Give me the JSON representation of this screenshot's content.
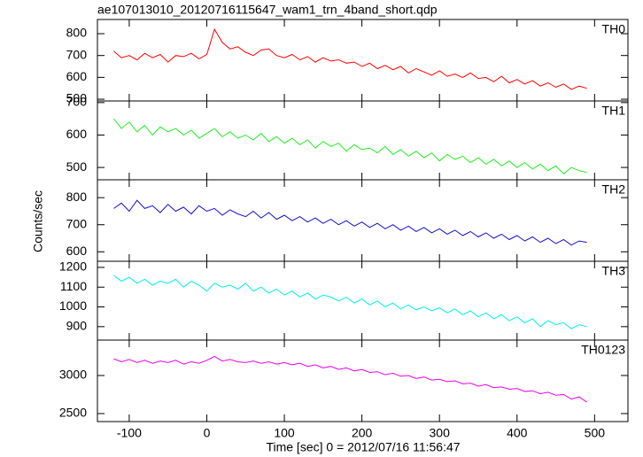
{
  "title": "ae107013010_20120716115647_wam1_trn_4band_short.qdp",
  "y_label": "Counts/sec",
  "x_label": "Time [sec] 0 = 2012/07/16 11:56:47",
  "chart_data": [
    {
      "type": "line",
      "xlim": [
        -141,
        543
      ],
      "xticks": [
        -100,
        0,
        100,
        200,
        300,
        400,
        500
      ],
      "ylim": [
        492,
        865
      ],
      "yticks": [
        500,
        600,
        700,
        800
      ],
      "x": [
        -120,
        -110,
        -100,
        -90,
        -80,
        -70,
        -60,
        -50,
        -40,
        -30,
        -20,
        -10,
        0,
        10,
        20,
        30,
        40,
        50,
        60,
        70,
        80,
        90,
        100,
        110,
        120,
        130,
        140,
        150,
        160,
        170,
        180,
        190,
        200,
        210,
        220,
        230,
        240,
        250,
        260,
        270,
        280,
        290,
        300,
        310,
        320,
        330,
        340,
        350,
        360,
        370,
        380,
        390,
        400,
        410,
        420,
        430,
        440,
        450,
        460,
        470,
        480,
        490
      ],
      "series": [
        {
          "name": "TH0",
          "color": "#ff0000",
          "values": [
            720,
            690,
            700,
            680,
            710,
            690,
            705,
            670,
            700,
            695,
            710,
            685,
            705,
            820,
            760,
            730,
            740,
            715,
            700,
            725,
            730,
            700,
            690,
            705,
            680,
            695,
            670,
            690,
            675,
            680,
            665,
            670,
            650,
            665,
            640,
            655,
            635,
            650,
            620,
            640,
            625,
            610,
            630,
            605,
            615,
            600,
            620,
            595,
            600,
            580,
            605,
            575,
            590,
            570,
            585,
            560,
            575,
            555,
            570,
            545,
            560,
            550
          ]
        }
      ]
    },
    {
      "type": "line",
      "xlim": [
        -141,
        543
      ],
      "xticks": [
        -100,
        0,
        100,
        200,
        300,
        400,
        500
      ],
      "ylim": [
        462,
        705
      ],
      "yticks": [
        500,
        600,
        700
      ],
      "x": [
        -120,
        -110,
        -100,
        -90,
        -80,
        -70,
        -60,
        -50,
        -40,
        -30,
        -20,
        -10,
        0,
        10,
        20,
        30,
        40,
        50,
        60,
        70,
        80,
        90,
        100,
        110,
        120,
        130,
        140,
        150,
        160,
        170,
        180,
        190,
        200,
        210,
        220,
        230,
        240,
        250,
        260,
        270,
        280,
        290,
        300,
        310,
        320,
        330,
        340,
        350,
        360,
        370,
        380,
        390,
        400,
        410,
        420,
        430,
        440,
        450,
        460,
        470,
        480,
        490
      ],
      "series": [
        {
          "name": "TH1",
          "color": "#22ee22",
          "values": [
            650,
            620,
            640,
            610,
            630,
            600,
            625,
            610,
            620,
            600,
            615,
            590,
            605,
            620,
            595,
            610,
            590,
            600,
            585,
            605,
            580,
            595,
            575,
            590,
            570,
            585,
            560,
            580,
            565,
            575,
            550,
            570,
            555,
            560,
            545,
            565,
            540,
            555,
            535,
            550,
            530,
            545,
            520,
            540,
            525,
            535,
            515,
            530,
            510,
            525,
            505,
            520,
            500,
            515,
            495,
            510,
            490,
            505,
            480,
            500,
            490,
            485
          ]
        }
      ]
    },
    {
      "type": "line",
      "xlim": [
        -141,
        543
      ],
      "xticks": [
        -100,
        0,
        100,
        200,
        300,
        400,
        500
      ],
      "ylim": [
        565,
        866
      ],
      "yticks": [
        600,
        700,
        800
      ],
      "x": [
        -120,
        -110,
        -100,
        -90,
        -80,
        -70,
        -60,
        -50,
        -40,
        -30,
        -20,
        -10,
        0,
        10,
        20,
        30,
        40,
        50,
        60,
        70,
        80,
        90,
        100,
        110,
        120,
        130,
        140,
        150,
        160,
        170,
        180,
        190,
        200,
        210,
        220,
        230,
        240,
        250,
        260,
        270,
        280,
        290,
        300,
        310,
        320,
        330,
        340,
        350,
        360,
        370,
        380,
        390,
        400,
        410,
        420,
        430,
        440,
        450,
        460,
        470,
        480,
        490
      ],
      "series": [
        {
          "name": "TH2",
          "color": "#1010d0",
          "values": [
            760,
            780,
            750,
            790,
            760,
            770,
            745,
            775,
            750,
            765,
            740,
            770,
            750,
            760,
            735,
            755,
            740,
            730,
            750,
            725,
            745,
            720,
            735,
            715,
            730,
            710,
            725,
            705,
            720,
            700,
            715,
            695,
            710,
            690,
            705,
            685,
            700,
            680,
            695,
            675,
            690,
            670,
            685,
            665,
            680,
            660,
            675,
            655,
            670,
            650,
            665,
            645,
            660,
            640,
            655,
            635,
            650,
            630,
            645,
            625,
            640,
            635
          ]
        }
      ]
    },
    {
      "type": "line",
      "xlim": [
        -141,
        543
      ],
      "xticks": [
        -100,
        0,
        100,
        200,
        300,
        400,
        500
      ],
      "ylim": [
        832,
        1231
      ],
      "yticks": [
        900,
        1000,
        1100,
        1200
      ],
      "x": [
        -120,
        -110,
        -100,
        -90,
        -80,
        -70,
        -60,
        -50,
        -40,
        -30,
        -20,
        -10,
        0,
        10,
        20,
        30,
        40,
        50,
        60,
        70,
        80,
        90,
        100,
        110,
        120,
        130,
        140,
        150,
        160,
        170,
        180,
        190,
        200,
        210,
        220,
        230,
        240,
        250,
        260,
        270,
        280,
        290,
        300,
        310,
        320,
        330,
        340,
        350,
        360,
        370,
        380,
        390,
        400,
        410,
        420,
        430,
        440,
        450,
        460,
        470,
        480,
        490
      ],
      "series": [
        {
          "name": "TH3",
          "color": "#00eeee",
          "values": [
            1160,
            1130,
            1150,
            1120,
            1140,
            1110,
            1130,
            1120,
            1140,
            1100,
            1130,
            1110,
            1080,
            1120,
            1100,
            1110,
            1090,
            1120,
            1080,
            1100,
            1070,
            1090,
            1060,
            1080,
            1050,
            1070,
            1040,
            1060,
            1050,
            1030,
            1050,
            1020,
            1040,
            1010,
            1030,
            1000,
            1020,
            990,
            1010,
            985,
            1000,
            980,
            995,
            970,
            990,
            960,
            980,
            950,
            970,
            940,
            960,
            930,
            950,
            920,
            940,
            900,
            930,
            910,
            920,
            890,
            910,
            900
          ]
        }
      ]
    },
    {
      "type": "line",
      "xlim": [
        -141,
        543
      ],
      "xticks": [
        -100,
        0,
        100,
        200,
        300,
        400,
        500
      ],
      "ylim": [
        2395,
        3465
      ],
      "yticks": [
        2500,
        3000
      ],
      "x": [
        -120,
        -110,
        -100,
        -90,
        -80,
        -70,
        -60,
        -50,
        -40,
        -30,
        -20,
        -10,
        0,
        10,
        20,
        30,
        40,
        50,
        60,
        70,
        80,
        90,
        100,
        110,
        120,
        130,
        140,
        150,
        160,
        170,
        180,
        190,
        200,
        210,
        220,
        230,
        240,
        250,
        260,
        270,
        280,
        290,
        300,
        310,
        320,
        330,
        340,
        350,
        360,
        370,
        380,
        390,
        400,
        410,
        420,
        430,
        440,
        450,
        460,
        470,
        480,
        490
      ],
      "series": [
        {
          "name": "TH0123",
          "color": "#ee00ee",
          "values": [
            3220,
            3180,
            3210,
            3170,
            3200,
            3160,
            3190,
            3170,
            3200,
            3150,
            3180,
            3160,
            3200,
            3250,
            3190,
            3210,
            3180,
            3170,
            3190,
            3160,
            3180,
            3150,
            3170,
            3140,
            3160,
            3120,
            3140,
            3100,
            3120,
            3080,
            3100,
            3060,
            3080,
            3040,
            3050,
            3010,
            3030,
            2990,
            3000,
            2960,
            2980,
            2940,
            2950,
            2920,
            2930,
            2890,
            2900,
            2860,
            2880,
            2840,
            2850,
            2820,
            2830,
            2790,
            2800,
            2760,
            2780,
            2740,
            2750,
            2690,
            2720,
            2650
          ]
        }
      ]
    }
  ]
}
